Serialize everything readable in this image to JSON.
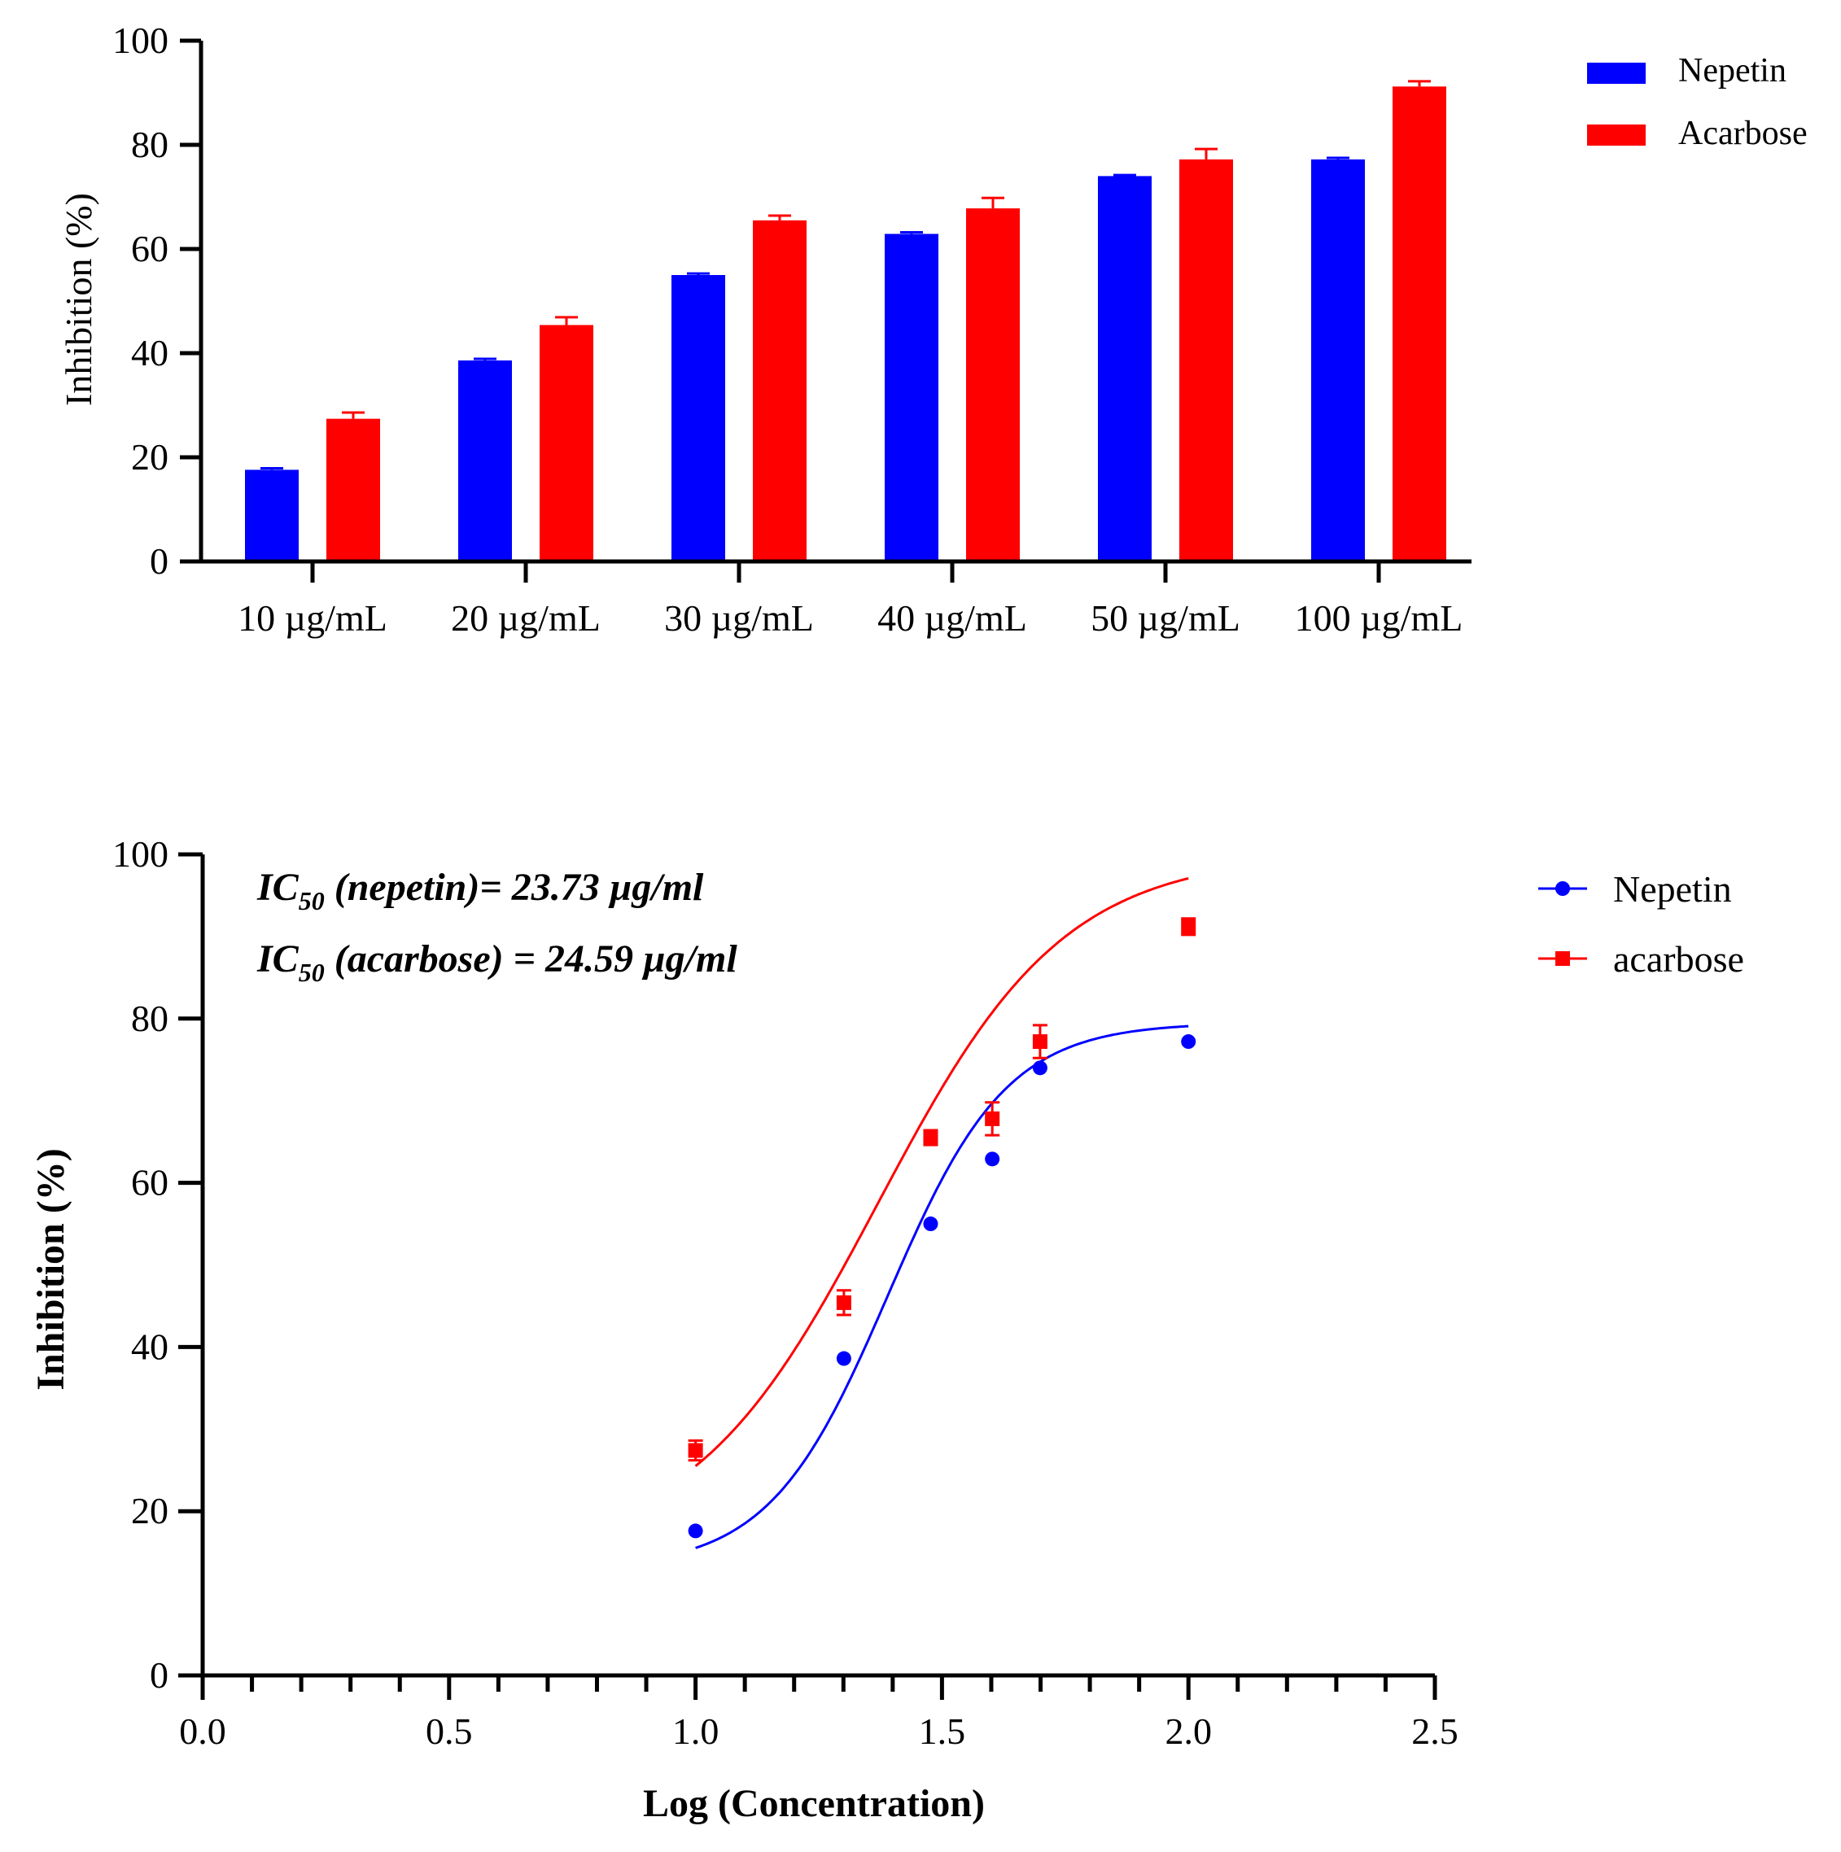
{
  "colors": {
    "nepetin": "#0000ff",
    "acarbose": "#ff0000",
    "axis": "#000000"
  },
  "chart_data": [
    {
      "type": "bar",
      "title": "",
      "xlabel": "",
      "ylabel": "Inhibition (%)",
      "ylim": [
        0,
        100
      ],
      "yticks": [
        "0",
        "20",
        "40",
        "60",
        "80",
        "100"
      ],
      "categories": [
        "10 µg/mL",
        "20 µg/mL",
        "30 µg/mL",
        "40 µg/mL",
        "50 µg/mL",
        "100  µg/mL"
      ],
      "series": [
        {
          "name": "Nepetin",
          "color": "#0000ff",
          "values": [
            17.6,
            38.6,
            55.0,
            62.9,
            74.0,
            77.2
          ],
          "errors": [
            0.3,
            0.3,
            0.3,
            0.3,
            0.2,
            0.3
          ]
        },
        {
          "name": "Acarbose",
          "color": "#ff0000",
          "values": [
            27.4,
            45.4,
            65.5,
            67.8,
            77.2,
            91.2
          ],
          "errors": [
            1.2,
            1.5,
            0.9,
            2.0,
            2.0,
            1.0
          ]
        }
      ],
      "legend": {
        "position": "top-right",
        "entries": [
          "Nepetin",
          "Acarbose"
        ]
      }
    },
    {
      "type": "scatter",
      "title": "",
      "xlabel": "Log (Concentration)",
      "ylabel": "Inhibition (%)",
      "xlim": [
        0,
        2.5
      ],
      "ylim": [
        0,
        100
      ],
      "xticks": [
        "0.0",
        "0.5",
        "1.0",
        "1.5",
        "2.0",
        "2.5"
      ],
      "yticks": [
        "0",
        "20",
        "40",
        "60",
        "80",
        "100"
      ],
      "annotations": [
        {
          "prefix": "IC",
          "sub": "50",
          "text": " (nepetin)= 23.73 µg/ml"
        },
        {
          "prefix": "IC",
          "sub": "50",
          "text": " (acarbose) = 24.59 µg/ml"
        }
      ],
      "series": [
        {
          "name": "Nepetin",
          "marker": "circle",
          "color": "#0000ff",
          "x": [
            1.0,
            1.301,
            1.477,
            1.602,
            1.699,
            2.0
          ],
          "y": [
            17.6,
            38.6,
            55.0,
            62.9,
            74.0,
            77.2
          ],
          "errors": [
            0.3,
            0.3,
            0.3,
            0.3,
            0.2,
            0.3
          ],
          "fit": {
            "bottom": 13.0,
            "top": 79.5,
            "logEC50": 1.39,
            "hill": 3.6
          }
        },
        {
          "name": "acarbose",
          "marker": "square",
          "color": "#ff0000",
          "x": [
            1.0,
            1.301,
            1.477,
            1.602,
            1.699,
            2.0
          ],
          "y": [
            27.4,
            45.4,
            65.5,
            67.8,
            77.2,
            91.2
          ],
          "errors": [
            1.2,
            1.5,
            0.9,
            2.0,
            2.0,
            1.0
          ],
          "fit": {
            "bottom": 15.0,
            "top": 100.0,
            "logEC50": 1.37,
            "hill": 2.3
          }
        }
      ],
      "legend": {
        "position": "top-right",
        "entries": [
          "Nepetin",
          "acarbose"
        ]
      }
    }
  ]
}
